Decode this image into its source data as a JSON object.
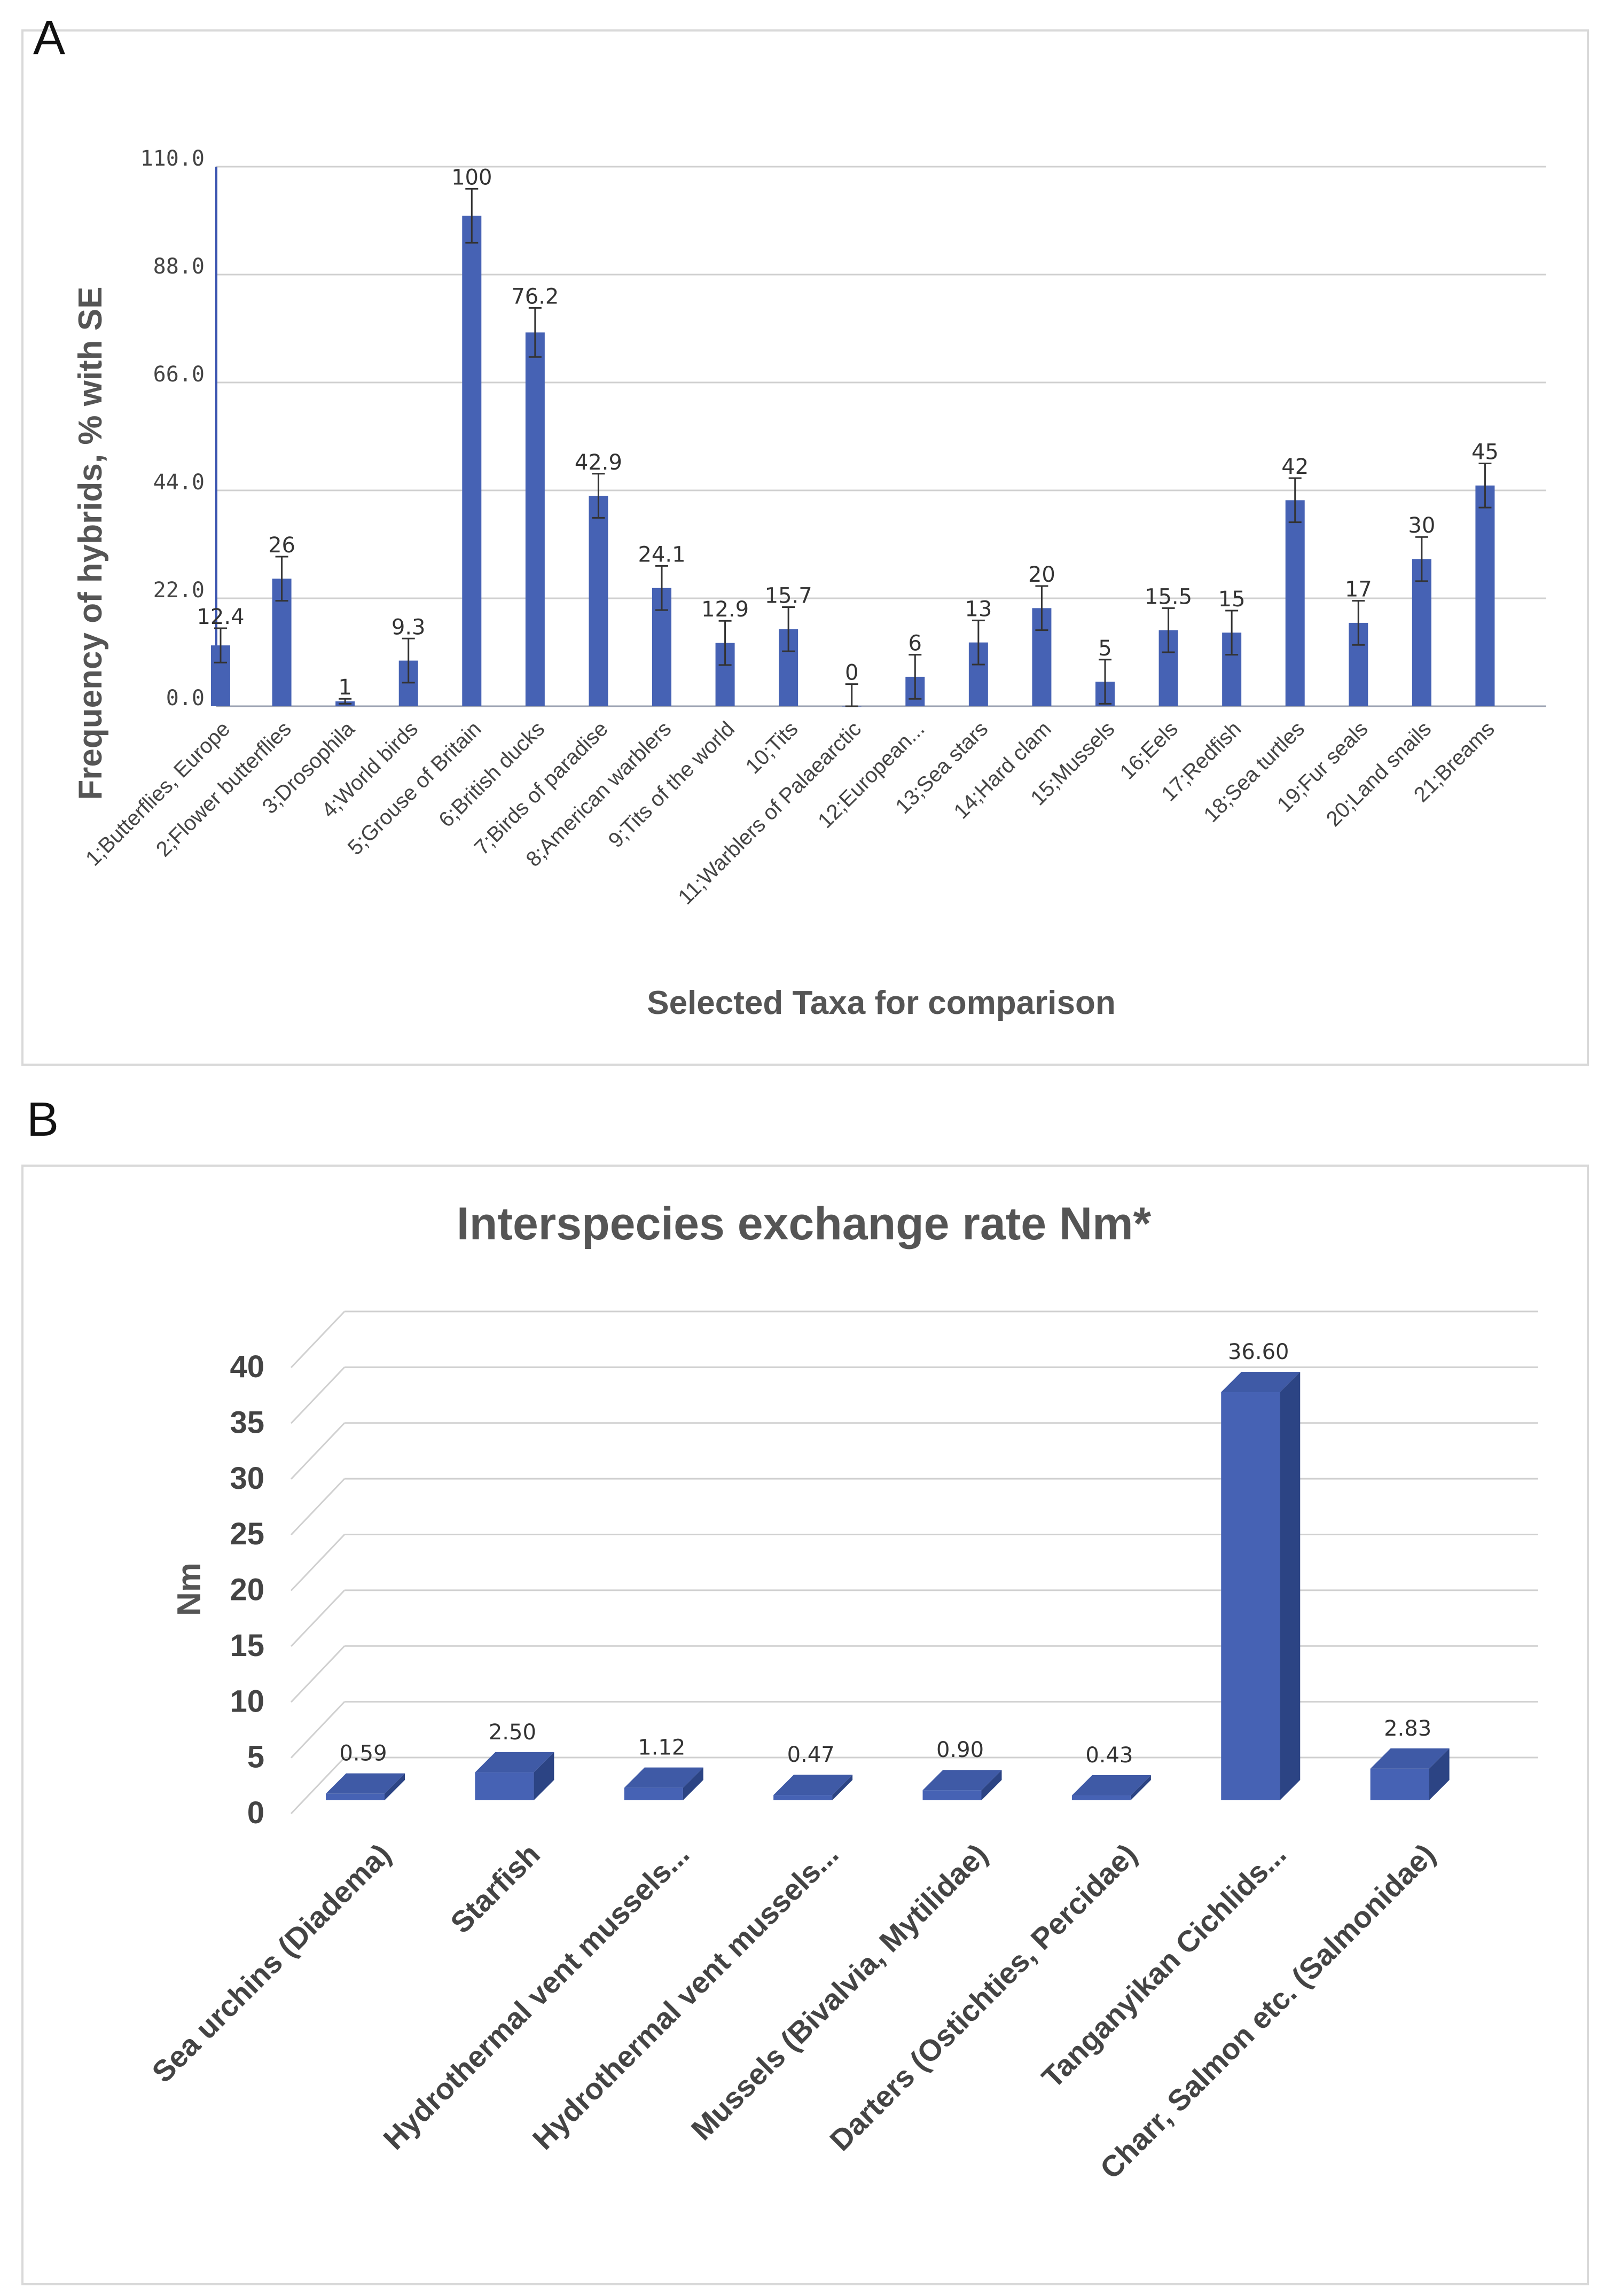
{
  "panels": {
    "a_letter": "A",
    "b_letter": "B"
  },
  "colors": {
    "bar": "#4662b4",
    "bar_side": "#2c4484",
    "bar_top": "#3f5aa6",
    "grid": "#d0d0d0",
    "axis": "#3b55b0"
  },
  "chart_data": [
    {
      "type": "bar",
      "title": "",
      "xlabel": "Selected Taxa for comparison",
      "ylabel": "Frequency of hybrids, % with SE",
      "ylim": [
        0,
        110
      ],
      "yticks": [
        "0.0",
        "22.0",
        "44.0",
        "66.0",
        "88.0",
        "110.0"
      ],
      "grid": true,
      "error_bars": true,
      "categories": [
        "1;Butterflies, Europe",
        "2;Flower butterflies",
        "3;Drosophila",
        "4;World birds",
        "5;Grouse of Britain",
        "6;British ducks",
        "7;Birds of paradise",
        "8;American warblers",
        "9;Tits of the world",
        "10;Tits",
        "11;Warblers of Palaearctic",
        "12;European...",
        "13;Sea stars",
        "14;Hard clam",
        "15;Mussels",
        "16;Eels",
        "17;Redfish",
        "18;Sea turtles",
        "19;Fur seals",
        "20;Land snails",
        "21;Breams"
      ],
      "values": [
        12.4,
        26,
        1,
        9.3,
        100,
        76.2,
        42.9,
        24.1,
        12.9,
        15.7,
        0,
        6,
        13,
        20,
        5,
        15.5,
        15,
        42,
        17,
        30,
        45
      ],
      "value_labels": [
        "12.4",
        "26",
        "1",
        "9.3",
        "100",
        "76.2",
        "42.9",
        "24.1",
        "12.9",
        "15.7",
        "0",
        "6",
        "13",
        "20",
        "5",
        "15.5",
        "15",
        "42",
        "17",
        "30",
        "45"
      ],
      "errors": [
        3.5,
        4.5,
        0.5,
        4.5,
        5.5,
        5.0,
        4.5,
        4.5,
        4.5,
        4.5,
        4.5,
        4.5,
        4.5,
        4.5,
        4.5,
        4.5,
        4.5,
        4.5,
        4.5,
        4.5,
        4.5
      ]
    },
    {
      "type": "bar",
      "title": "Interspecies exchange rate Nm*",
      "xlabel": "",
      "ylabel": "Nm",
      "ylim": [
        0,
        40
      ],
      "yticks": [
        "0",
        "5",
        "10",
        "15",
        "20",
        "25",
        "30",
        "35",
        "40"
      ],
      "grid": true,
      "style": "3d",
      "categories": [
        "Sea urchins (Diadema)",
        "Starfish",
        "Hydrothermal vent mussels...",
        "Hydrothermal vent mussels...",
        "Mussels (Bivalvia, Mytilidae)",
        "Darters (Ostichties, Percidae)",
        "Tanganyikan Cichlids...",
        "Charr, Salmon etc. (Salmonidae)"
      ],
      "values": [
        0.59,
        2.5,
        1.12,
        0.47,
        0.9,
        0.43,
        36.6,
        2.83
      ],
      "value_labels": [
        "0.59",
        "2.50",
        "1.12",
        "0.47",
        "0.90",
        "0.43",
        "36.60",
        "2.83"
      ]
    }
  ]
}
